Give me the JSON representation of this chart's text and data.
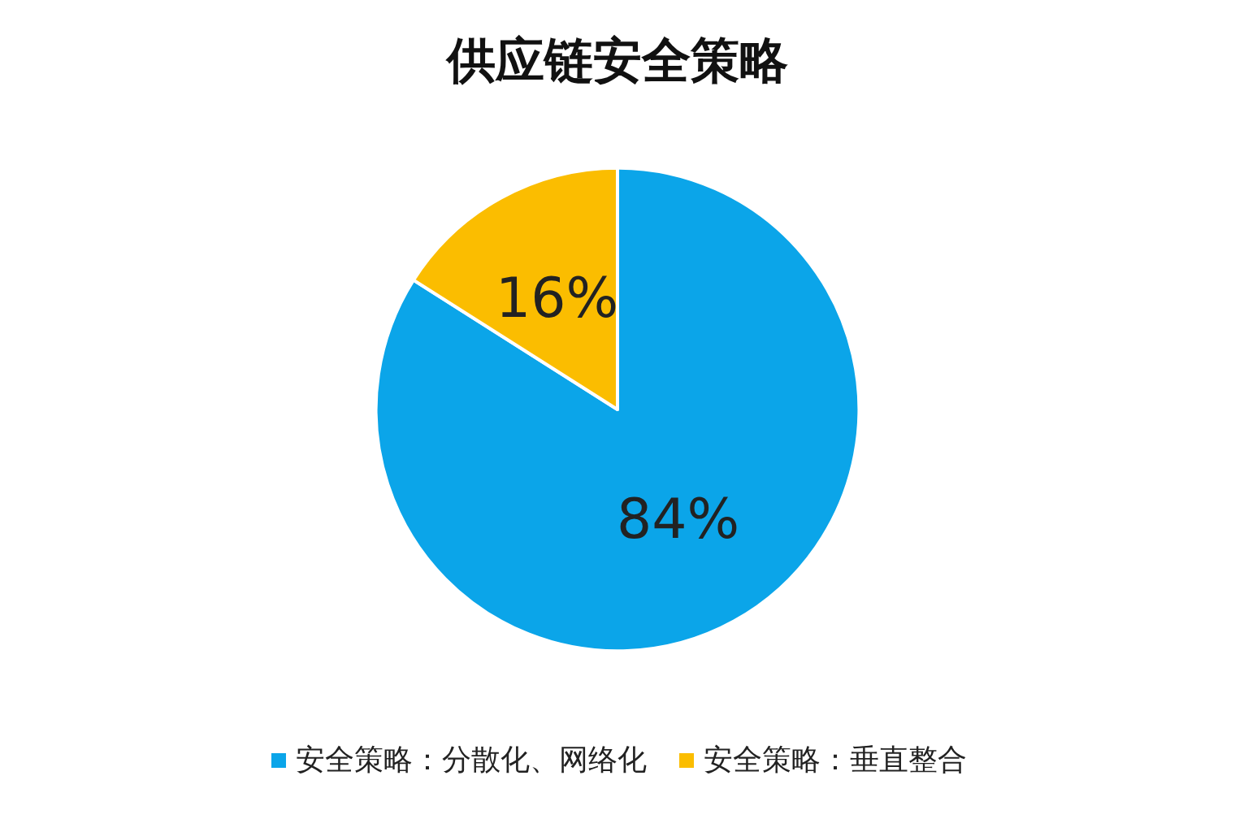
{
  "chart_data": {
    "type": "pie",
    "title": "供应链安全策略",
    "categories": [
      "安全策略：分散化、网络化",
      "安全策略：垂直整合"
    ],
    "values": [
      84,
      16
    ],
    "colors": [
      "#0ba5e9",
      "#fbbd00"
    ],
    "value_labels": [
      "84%",
      "16%"
    ],
    "legend": "bottom"
  }
}
